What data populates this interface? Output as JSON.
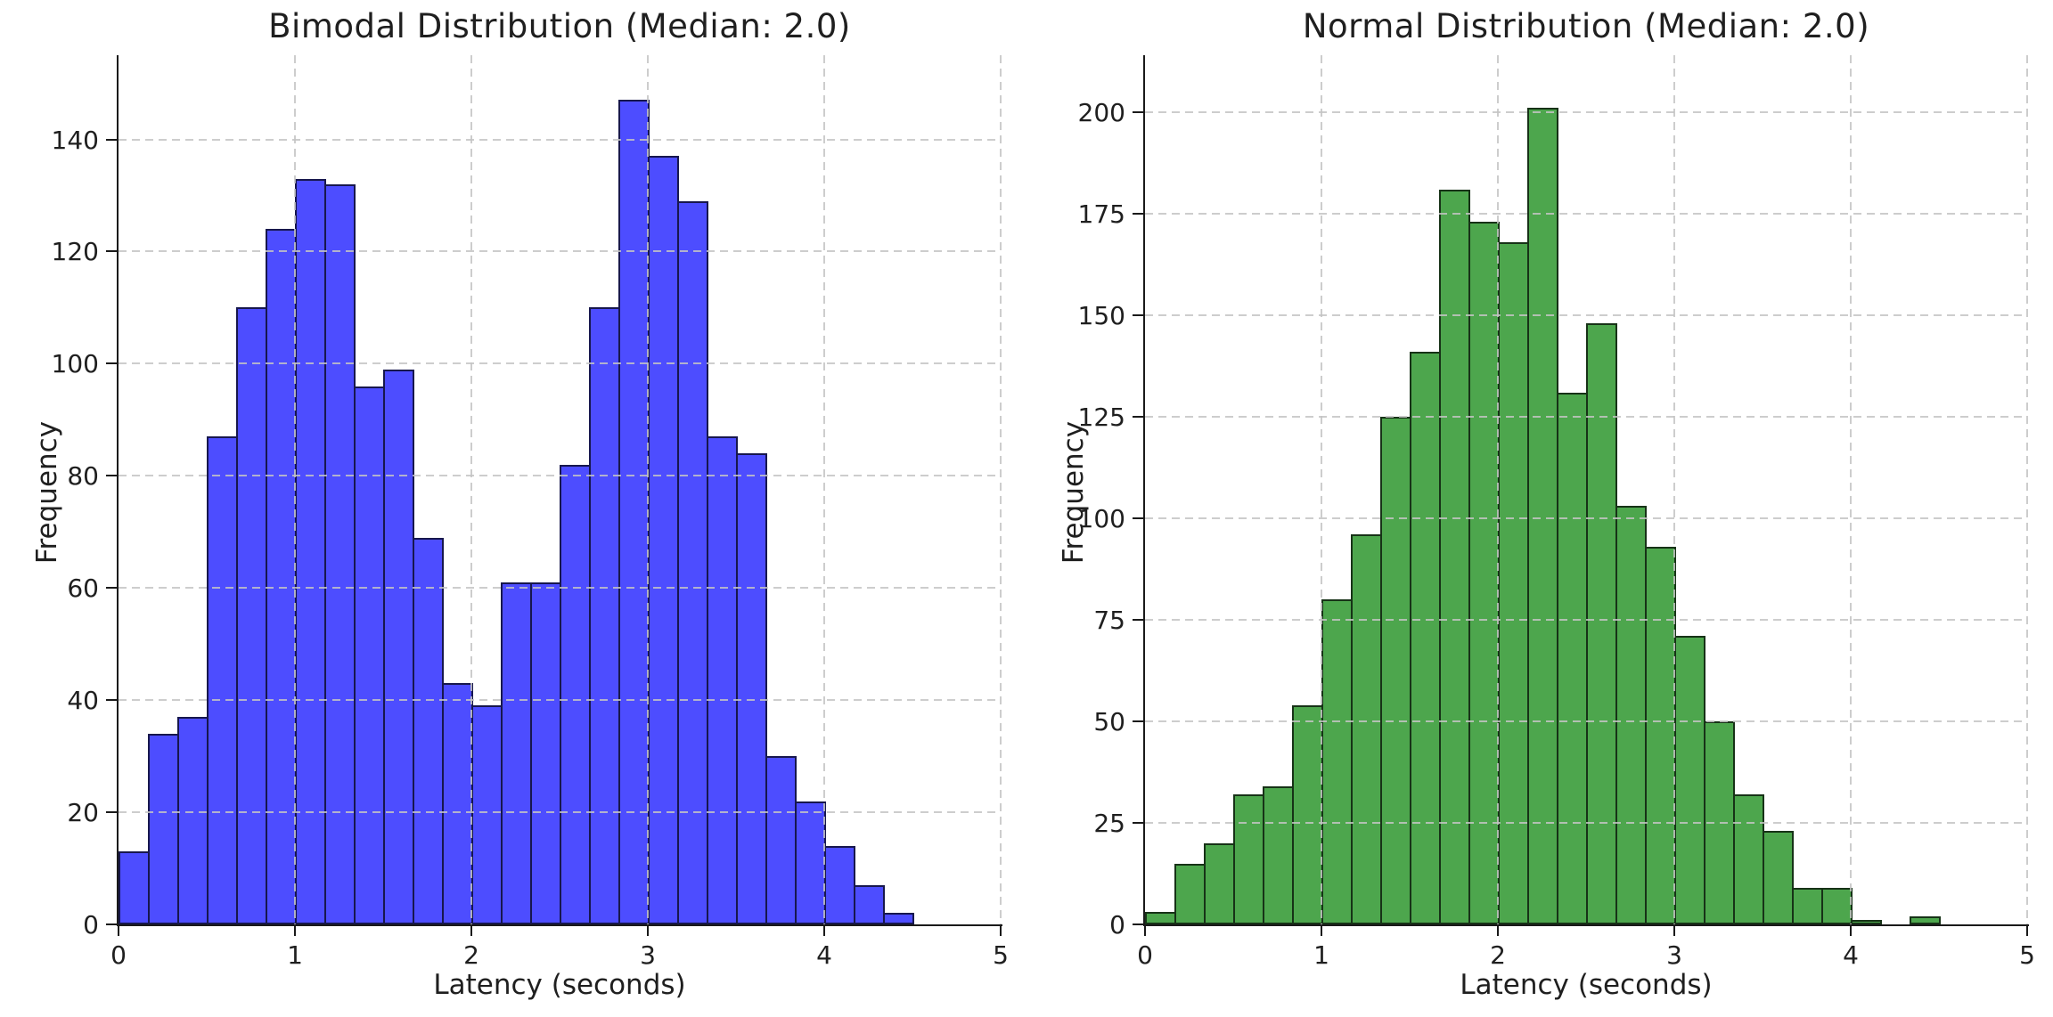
{
  "figure": {
    "background": "#ffffff"
  },
  "chart_data": [
    {
      "type": "bar",
      "chart_kind": "histogram",
      "title": "Bimodal Distribution (Median: 2.0)",
      "median_shown": "2.0",
      "xlabel": "Latency (seconds)",
      "ylabel": "Frequency",
      "bar_color": "#4D4DFF",
      "bar_edge_color": "#17174D",
      "bin_start": 0,
      "bin_width": 0.16667,
      "values": [
        13,
        34,
        37,
        87,
        110,
        124,
        133,
        132,
        96,
        99,
        69,
        43,
        39,
        61,
        61,
        82,
        110,
        147,
        137,
        129,
        87,
        84,
        30,
        22,
        14,
        7,
        2
      ],
      "xlim": [
        0,
        5
      ],
      "ylim": [
        0,
        155
      ],
      "xticks": [
        0,
        1,
        2,
        3,
        4,
        5
      ],
      "yticks": [
        0,
        20,
        40,
        60,
        80,
        100,
        120,
        140
      ],
      "grid": "dashed",
      "grid_color": "#c4c4c4",
      "legend_position": "none"
    },
    {
      "type": "bar",
      "chart_kind": "histogram",
      "title": "Normal Distribution (Median: 2.0)",
      "median_shown": "2.0",
      "xlabel": "Latency (seconds)",
      "ylabel": "Frequency",
      "bar_color": "#4DA64D",
      "bar_edge_color": "#173217",
      "bin_start": 0,
      "bin_width": 0.16667,
      "values": [
        3,
        15,
        20,
        32,
        34,
        54,
        80,
        96,
        125,
        141,
        181,
        173,
        168,
        201,
        131,
        148,
        103,
        93,
        71,
        50,
        32,
        23,
        9,
        9,
        1,
        0,
        2
      ],
      "xlim": [
        0,
        5
      ],
      "ylim": [
        0,
        214
      ],
      "xticks": [
        0,
        1,
        2,
        3,
        4,
        5
      ],
      "yticks": [
        0,
        25,
        50,
        75,
        100,
        125,
        150,
        175,
        200
      ],
      "grid": "dashed",
      "grid_color": "#c4c4c4",
      "legend_position": "none"
    }
  ]
}
